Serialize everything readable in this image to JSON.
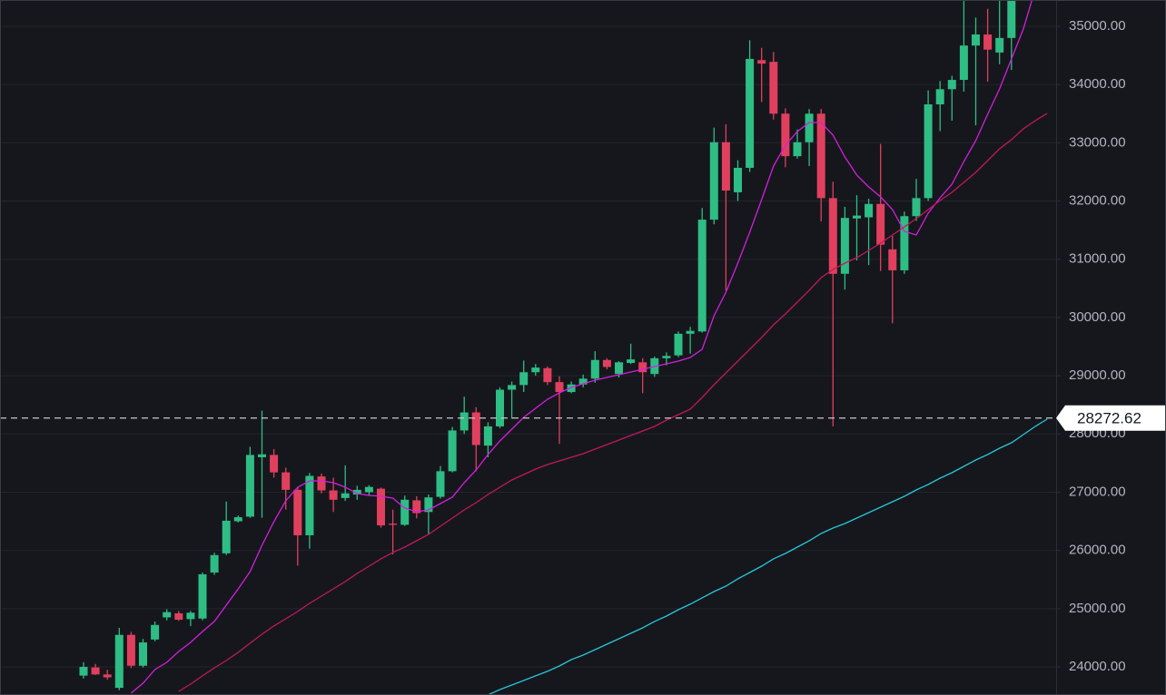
{
  "chart_data": {
    "type": "candlestick",
    "up_color": "#2ebd85",
    "down_color": "#e0405e",
    "grid": true,
    "ylim": [
      23517,
      35452
    ],
    "yticks": [
      {
        "value": 24000,
        "label": "24000.00"
      },
      {
        "value": 25000,
        "label": "25000.00"
      },
      {
        "value": 26000,
        "label": "26000.00"
      },
      {
        "value": 27000,
        "label": "27000.00"
      },
      {
        "value": 28000,
        "label": "28000.00"
      },
      {
        "value": 29000,
        "label": "29000.00"
      },
      {
        "value": 30000,
        "label": "30000.00"
      },
      {
        "value": 31000,
        "label": "31000.00"
      },
      {
        "value": 32000,
        "label": "32000.00"
      },
      {
        "value": 33000,
        "label": "33000.00"
      },
      {
        "value": 34000,
        "label": "34000.00"
      },
      {
        "value": 35000,
        "label": "35000.00"
      }
    ],
    "price_line": {
      "value": 28272.62,
      "color": "#c8c9cc"
    },
    "candles": [
      [
        23850,
        24080,
        23800,
        24000
      ],
      [
        23990,
        24050,
        23860,
        23870
      ],
      [
        23870,
        23950,
        23780,
        23820
      ],
      [
        23640,
        24670,
        23600,
        24550
      ],
      [
        24550,
        24600,
        23980,
        24020
      ],
      [
        24020,
        24480,
        23990,
        24420
      ],
      [
        24470,
        24780,
        24440,
        24720
      ],
      [
        24850,
        24990,
        24800,
        24940
      ],
      [
        24920,
        24960,
        24790,
        24810
      ],
      [
        24820,
        24960,
        24700,
        24930
      ],
      [
        24830,
        25620,
        24800,
        25590
      ],
      [
        25620,
        25960,
        25580,
        25920
      ],
      [
        25950,
        26840,
        25920,
        26510
      ],
      [
        26500,
        26600,
        26480,
        26570
      ],
      [
        26580,
        27780,
        26560,
        27640
      ],
      [
        27600,
        28400,
        26560,
        27650
      ],
      [
        27640,
        27740,
        27250,
        27340
      ],
      [
        27340,
        27420,
        26700,
        27040
      ],
      [
        27040,
        27090,
        25740,
        26260
      ],
      [
        26260,
        27330,
        26030,
        27280
      ],
      [
        27270,
        27320,
        26980,
        27030
      ],
      [
        27030,
        27250,
        26660,
        26870
      ],
      [
        26900,
        27460,
        26850,
        26980
      ],
      [
        26960,
        27110,
        26870,
        27040
      ],
      [
        27000,
        27120,
        26940,
        27090
      ],
      [
        27060,
        27080,
        26390,
        26430
      ],
      [
        26460,
        26700,
        25930,
        26440
      ],
      [
        26440,
        26940,
        26420,
        26870
      ],
      [
        26860,
        26930,
        26550,
        26640
      ],
      [
        26660,
        26960,
        26280,
        26910
      ],
      [
        26920,
        27450,
        26890,
        27360
      ],
      [
        27360,
        28120,
        27340,
        28060
      ],
      [
        28060,
        28640,
        28000,
        28370
      ],
      [
        28370,
        28460,
        27360,
        27810
      ],
      [
        27800,
        28200,
        27600,
        28130
      ],
      [
        28130,
        28800,
        28100,
        28760
      ],
      [
        28760,
        28900,
        28260,
        28840
      ],
      [
        28840,
        29260,
        28720,
        29060
      ],
      [
        29060,
        29200,
        29000,
        29140
      ],
      [
        29130,
        29160,
        28840,
        28890
      ],
      [
        28890,
        28990,
        27830,
        28720
      ],
      [
        28720,
        28900,
        28700,
        28850
      ],
      [
        28850,
        29020,
        28800,
        28950
      ],
      [
        28950,
        29420,
        28880,
        29270
      ],
      [
        29270,
        29300,
        29110,
        29150
      ],
      [
        29030,
        29250,
        28970,
        29230
      ],
      [
        29220,
        29550,
        29200,
        29280
      ],
      [
        29230,
        29300,
        28700,
        29060
      ],
      [
        29030,
        29330,
        28980,
        29300
      ],
      [
        29300,
        29400,
        29180,
        29340
      ],
      [
        29350,
        29760,
        29320,
        29720
      ],
      [
        29720,
        29840,
        29380,
        29770
      ],
      [
        29760,
        31880,
        29740,
        31680
      ],
      [
        31680,
        33260,
        31600,
        33010
      ],
      [
        33010,
        33320,
        30460,
        32180
      ],
      [
        32150,
        32700,
        32000,
        32570
      ],
      [
        32570,
        34760,
        32500,
        34440
      ],
      [
        34420,
        34630,
        33700,
        34360
      ],
      [
        34390,
        34560,
        33400,
        33500
      ],
      [
        33500,
        33590,
        32580,
        32770
      ],
      [
        32770,
        33230,
        32730,
        33010
      ],
      [
        33010,
        33580,
        32600,
        33500
      ],
      [
        33500,
        33580,
        31650,
        32050
      ],
      [
        32050,
        32330,
        28130,
        30750
      ],
      [
        30750,
        31900,
        30480,
        31710
      ],
      [
        31700,
        32100,
        30980,
        31750
      ],
      [
        31720,
        32040,
        30900,
        31950
      ],
      [
        31950,
        32980,
        30800,
        31250
      ],
      [
        31170,
        31400,
        29900,
        30810
      ],
      [
        30810,
        31820,
        30750,
        31740
      ],
      [
        31740,
        32380,
        31660,
        32050
      ],
      [
        32050,
        33900,
        32000,
        33660
      ],
      [
        33660,
        34060,
        33200,
        33920
      ],
      [
        33920,
        34150,
        33380,
        34080
      ],
      [
        34080,
        35450,
        33880,
        34670
      ],
      [
        34670,
        35150,
        33300,
        34860
      ],
      [
        34860,
        35300,
        34050,
        34600
      ],
      [
        34550,
        35450,
        34350,
        34800
      ],
      [
        34800,
        35450,
        34250,
        35450
      ],
      null,
      null,
      null
    ],
    "lines": [
      {
        "color": "#d41ee0",
        "values": [
          null,
          null,
          null,
          null,
          23549,
          23720,
          23954,
          24078,
          24265,
          24421,
          24608,
          24780,
          25060,
          25340,
          25636,
          26088,
          26493,
          26852,
          27085,
          27194,
          27194,
          27163,
          27085,
          26976,
          26945,
          26930,
          26898,
          26727,
          26665,
          26696,
          26805,
          26914,
          27163,
          27381,
          27646,
          27880,
          28082,
          28285,
          28441,
          28597,
          28706,
          28799,
          28861,
          28924,
          28971,
          29017,
          29064,
          29111,
          29157,
          29204,
          29251,
          29313,
          29454,
          30030,
          30435,
          30934,
          31463,
          32024,
          32601,
          32959,
          33193,
          33349,
          33349,
          33130,
          32756,
          32445,
          32242,
          32071,
          31853,
          31479,
          31417,
          31790,
          32055,
          32289,
          32679,
          33037,
          33489,
          33925,
          34439,
          34953,
          35639,
          null
        ]
      },
      {
        "color": "#c2185b",
        "values": [
          null,
          null,
          null,
          null,
          null,
          null,
          null,
          null,
          23580,
          23704,
          23845,
          23985,
          24109,
          24250,
          24406,
          24561,
          24702,
          24826,
          24951,
          25091,
          25216,
          25340,
          25465,
          25605,
          25730,
          25855,
          25964,
          26057,
          26166,
          26275,
          26415,
          26556,
          26696,
          26820,
          26961,
          27085,
          27210,
          27303,
          27397,
          27475,
          27537,
          27599,
          27662,
          27740,
          27817,
          27896,
          27973,
          28051,
          28129,
          28238,
          28332,
          28425,
          28628,
          28846,
          29048,
          29251,
          29454,
          29656,
          29874,
          30061,
          30264,
          30466,
          30684,
          30825,
          30934,
          31027,
          31152,
          31276,
          31417,
          31557,
          31697,
          31853,
          32009,
          32149,
          32320,
          32492,
          32694,
          32897,
          33052,
          33239,
          33380,
          33504
        ]
      },
      {
        "color": "#26c6da",
        "values": [
          null,
          null,
          null,
          null,
          null,
          null,
          null,
          null,
          null,
          null,
          null,
          null,
          null,
          null,
          null,
          null,
          null,
          null,
          null,
          null,
          null,
          null,
          null,
          null,
          null,
          null,
          null,
          null,
          null,
          null,
          null,
          null,
          null,
          null,
          23518,
          23611,
          23689,
          23767,
          23845,
          23923,
          24016,
          24125,
          24203,
          24296,
          24390,
          24483,
          24577,
          24670,
          24780,
          24873,
          24982,
          25076,
          25185,
          25294,
          25387,
          25512,
          25621,
          25730,
          25855,
          25948,
          26057,
          26166,
          26291,
          26384,
          26462,
          26556,
          26649,
          26743,
          26836,
          26930,
          27039,
          27132,
          27241,
          27335,
          27444,
          27553,
          27646,
          27755,
          27849,
          27989,
          28129,
          28254
        ]
      }
    ]
  }
}
